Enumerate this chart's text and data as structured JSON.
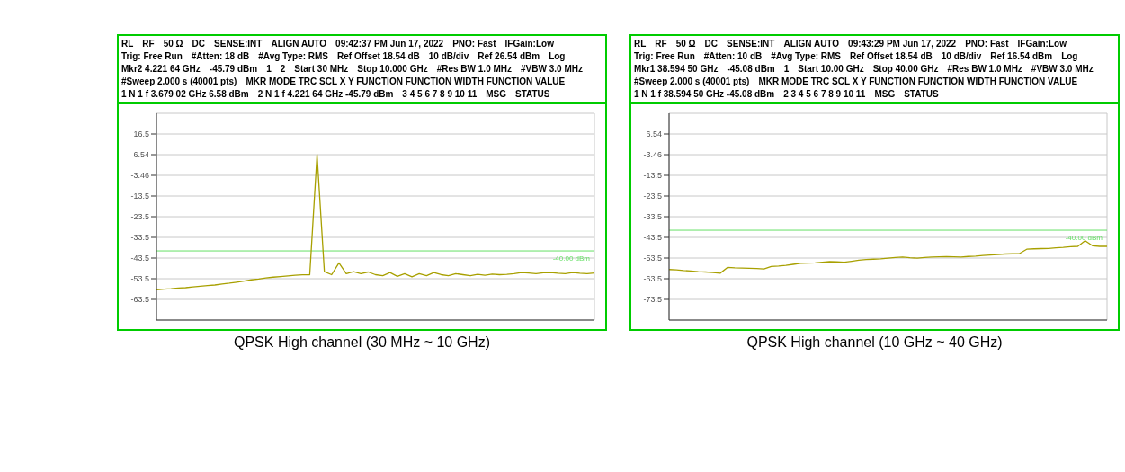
{
  "chart_data": [
    {
      "type": "line",
      "title": "QPSK High channel (30 MHz ~ 10 GHz)",
      "tick_labels": "y",
      "grid": true,
      "marker": "none",
      "line_style": "solid",
      "categories": [
        null,
        null,
        null,
        null,
        null,
        null,
        null,
        null,
        null,
        null,
        null,
        null,
        null,
        null,
        null,
        null,
        null,
        null,
        null,
        null,
        null,
        null,
        null,
        null,
        null,
        null,
        null,
        null,
        null,
        null,
        null,
        null,
        null,
        null,
        null,
        null,
        null,
        null,
        null,
        null,
        null,
        null,
        null,
        null,
        null,
        null,
        null,
        null,
        null,
        null,
        null,
        null,
        null,
        null,
        null,
        null,
        null,
        null,
        null,
        null,
        null
      ],
      "series": [
        {
          "color": "#a8a000",
          "values": [
            -58.8,
            -58.5,
            -58.3,
            -58,
            -57.8,
            -57.4,
            -57.1,
            -56.8,
            -56.5,
            -56,
            -55.6,
            -55.1,
            -54.6,
            -54,
            -53.6,
            -53.1,
            -52.7,
            -52.4,
            -52.1,
            -51.8,
            -51.6,
            -51.5,
            6.58,
            -50,
            -51.5,
            -45.79,
            -51,
            -50,
            -51,
            -50.2,
            -51.5,
            -52,
            -50.5,
            -52.3,
            -51,
            -52.5,
            -51,
            -52,
            -50.5,
            -51.5,
            -52,
            -51,
            -51.5,
            -52,
            -51.3,
            -51.8,
            -51.2,
            -51.5,
            -51.3,
            -51,
            -50.5,
            -50.7,
            -51,
            -50.6,
            -50.5,
            -50.8,
            -51,
            -50.5,
            -50.8,
            -51,
            -50.7
          ]
        }
      ],
      "ylim": [
        -73.46,
        26.54
      ],
      "yticks": [
        {
          "value": 16.54,
          "label": "16.5"
        },
        {
          "value": 6.54,
          "label": "6.54"
        },
        {
          "value": -3.46,
          "label": "-3.46"
        },
        {
          "value": -13.46,
          "label": "-13.5"
        },
        {
          "value": -23.46,
          "label": "-23.5"
        },
        {
          "value": -33.46,
          "label": "-33.5"
        },
        {
          "value": -43.46,
          "label": "-43.5"
        },
        {
          "value": -53.46,
          "label": "-53.5"
        },
        {
          "value": -63.46,
          "label": "-63.5"
        }
      ],
      "ref_lines": [
        {
          "axis": "y",
          "value": -40,
          "label": "-40.00 dBm",
          "color": "#66e066"
        }
      ],
      "annotations": [
        "RL",
        "RF",
        "50 Ω",
        "DC",
        "SENSE:INT",
        "ALIGN AUTO",
        "09:42:37 PM Jun 17, 2022",
        "PNO: Fast",
        "IFGain:Low",
        "Trig: Free Run",
        "#Atten: 18 dB",
        "#Avg Type: RMS",
        "Ref Offset 18.54 dB",
        "10 dB/div",
        "Ref 26.54 dBm",
        "Log",
        "Mkr2 4.221 64 GHz",
        "-45.79 dBm",
        "1",
        "2",
        "Start 30 MHz",
        "Stop 10.000 GHz",
        "#Res BW 1.0 MHz",
        "#VBW 3.0 MHz",
        "#Sweep  2.000 s (40001 pts)",
        "MKR MODE TRC SCL X Y FUNCTION FUNCTION WIDTH FUNCTION VALUE",
        "1 N 1 f 3.679 02 GHz 6.58 dBm",
        "2 N 1 f 4.221 64 GHz -45.79 dBm",
        "3 4 5 6 7 8 9 10 11",
        "MSG",
        "STATUS"
      ]
    },
    {
      "type": "line",
      "title": "QPSK High channel (10 GHz ~ 40 GHz)",
      "tick_labels": "y",
      "grid": true,
      "marker": "none",
      "line_style": "solid",
      "categories": [
        null,
        null,
        null,
        null,
        null,
        null,
        null,
        null,
        null,
        null,
        null,
        null,
        null,
        null,
        null,
        null,
        null,
        null,
        null,
        null,
        null,
        null,
        null,
        null,
        null,
        null,
        null,
        null,
        null,
        null,
        null,
        null,
        null,
        null,
        null,
        null,
        null,
        null,
        null,
        null,
        null,
        null,
        null,
        null,
        null,
        null,
        null,
        null,
        null,
        null,
        null,
        null,
        null,
        null,
        null,
        null,
        null,
        null,
        null,
        null,
        null
      ],
      "series": [
        {
          "color": "#a8a000",
          "values": [
            -59,
            -59.2,
            -59.5,
            -59.7,
            -60,
            -60.2,
            -60.5,
            -60.8,
            -58,
            -58.2,
            -58.3,
            -58.4,
            -58.5,
            -58.7,
            -57.5,
            -57.3,
            -57,
            -56.5,
            -56,
            -55.9,
            -55.8,
            -55.5,
            -55.2,
            -55.3,
            -55.5,
            -55,
            -54.5,
            -54.2,
            -54,
            -53.8,
            -53.5,
            -53.2,
            -53,
            -53.3,
            -53.5,
            -53.2,
            -53,
            -52.9,
            -52.8,
            -52.9,
            -53,
            -52.7,
            -52.5,
            -52.2,
            -52,
            -51.8,
            -51.5,
            -51.4,
            -51.3,
            -49.2,
            -49,
            -48.9,
            -48.8,
            -48.5,
            -48.3,
            -48,
            -47.8,
            -45.08,
            -47.5,
            -47.8,
            -47.8
          ]
        }
      ],
      "ylim": [
        -83.46,
        16.54
      ],
      "yticks": [
        {
          "value": 6.54,
          "label": "6.54"
        },
        {
          "value": -3.46,
          "label": "-3.46"
        },
        {
          "value": -13.46,
          "label": "-13.5"
        },
        {
          "value": -23.46,
          "label": "-23.5"
        },
        {
          "value": -33.46,
          "label": "-33.5"
        },
        {
          "value": -43.46,
          "label": "-43.5"
        },
        {
          "value": -53.46,
          "label": "-53.5"
        },
        {
          "value": -63.46,
          "label": "-63.5"
        },
        {
          "value": -73.46,
          "label": "-73.5"
        }
      ],
      "ref_lines": [
        {
          "axis": "y",
          "value": -40,
          "label": "-40.00 dBm",
          "color": "#66e066"
        }
      ],
      "annotations": [
        "RL",
        "RF",
        "50 Ω",
        "DC",
        "SENSE:INT",
        "ALIGN AUTO",
        "09:43:29 PM Jun 17, 2022",
        "PNO: Fast",
        "IFGain:Low",
        "Trig: Free Run",
        "#Atten: 10 dB",
        "#Avg Type: RMS",
        "Ref Offset 18.54 dB",
        "10 dB/div",
        "Ref 16.54 dBm",
        "Log",
        "Mkr1 38.594 50 GHz",
        "-45.08 dBm",
        "1",
        "Start 10.00 GHz",
        "Stop 40.00 GHz",
        "#Res BW 1.0 MHz",
        "#VBW 3.0 MHz",
        "#Sweep  2.000 s (40001 pts)",
        "MKR MODE TRC SCL X Y FUNCTION FUNCTION WIDTH FUNCTION VALUE",
        "1 N 1 f 38.594 50 GHz -45.08 dBm",
        "2 3 4 5 6 7 8 9 10 11",
        "MSG",
        "STATUS"
      ]
    }
  ]
}
